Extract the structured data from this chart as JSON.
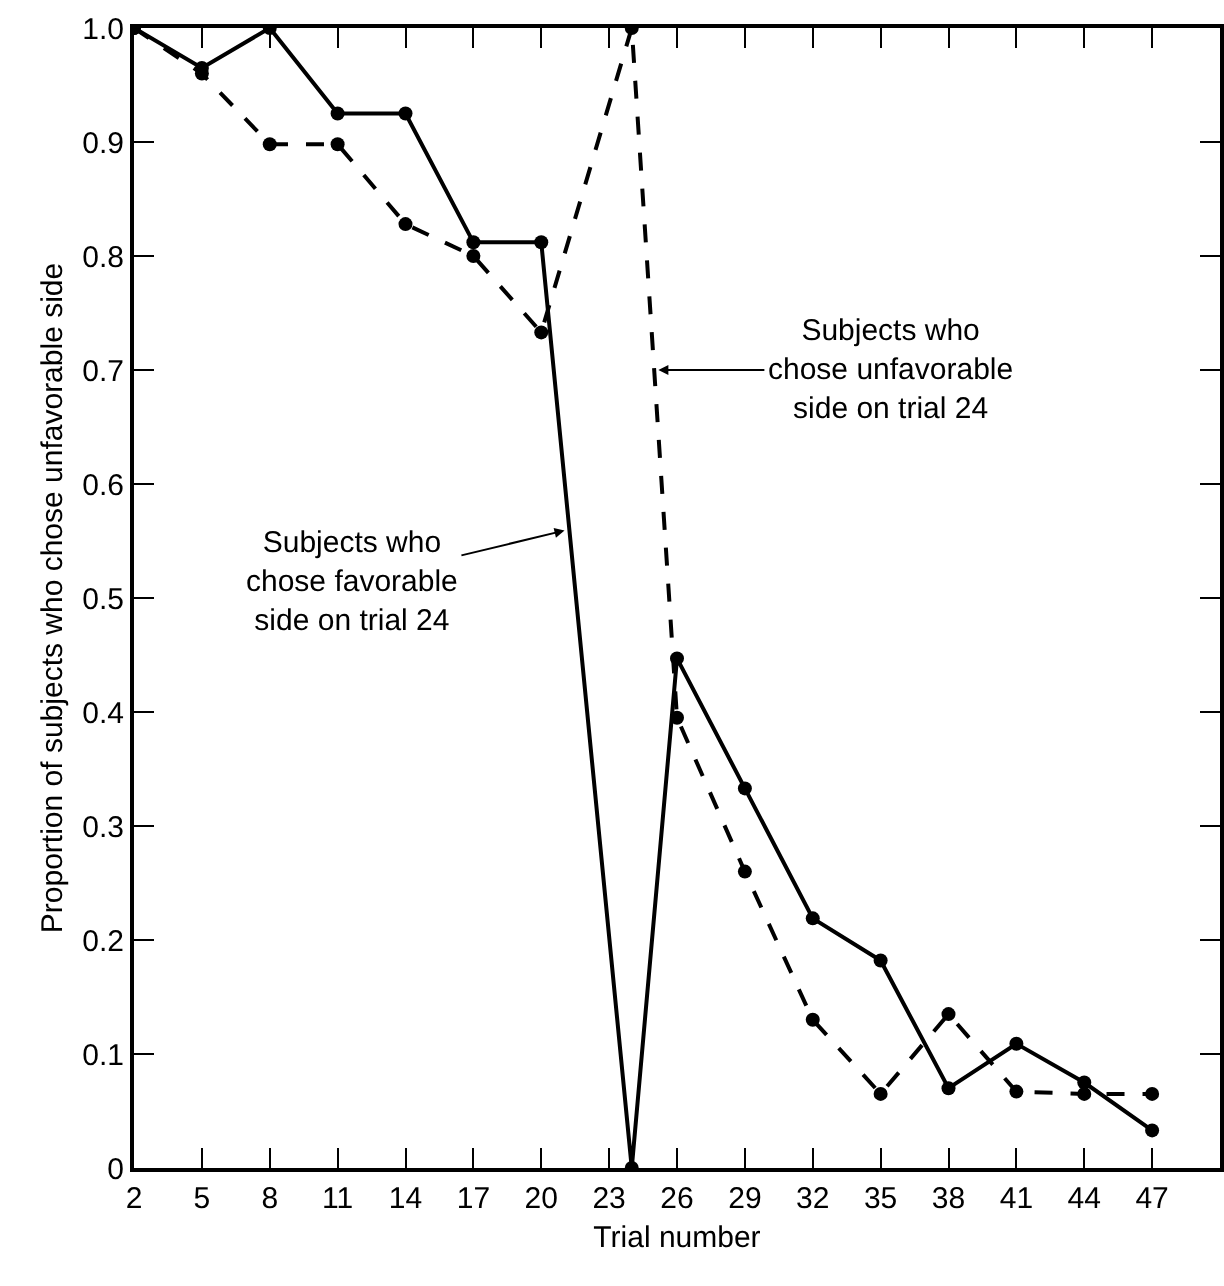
{
  "chart_data": {
    "type": "line",
    "xlabel": "Trial number",
    "ylabel": "Proportion of subjects who chose unfavorable side",
    "series": [
      {
        "color": "#000000",
        "line_style": "solid",
        "x": [
          2,
          5,
          8,
          11,
          14,
          17,
          20,
          24,
          26,
          29,
          32,
          35,
          38,
          41,
          44,
          47
        ],
        "values": [
          1.0,
          0.965,
          1.0,
          0.925,
          0.925,
          0.812,
          0.812,
          0,
          0.447,
          0.333,
          0.219,
          0.182,
          0.07,
          0.109,
          0.075,
          0.033
        ]
      },
      {
        "color": "#000000",
        "line_style": "dashed",
        "x": [
          2,
          5,
          8,
          11,
          14,
          17,
          20,
          24,
          26,
          29,
          32,
          35,
          38,
          41,
          44,
          47
        ],
        "values": [
          1.0,
          0.96,
          0.898,
          0.898,
          0.828,
          0.8,
          0.733,
          1.0,
          0.395,
          0.26,
          0.13,
          0.065,
          0.135,
          0.067,
          0.065,
          0.065
        ]
      }
    ],
    "annotations": [
      {
        "text": "Subjects who\nchose favorable\nside on trial 24",
        "x": 21.2,
        "y": 0.56
      },
      {
        "text": "Subjects who\nchose unfavorable\nside on trial 24",
        "x": 25,
        "y": 0.7
      }
    ],
    "xlim": [
      2,
      50
    ],
    "xticks": [
      2,
      5,
      8,
      11,
      14,
      17,
      20,
      23,
      26,
      29,
      32,
      35,
      38,
      41,
      44,
      47
    ],
    "ylim": [
      0,
      1
    ],
    "yticks": [
      0,
      0.1,
      0.2,
      0.3,
      0.4,
      0.5,
      0.6,
      0.7,
      0.8,
      0.9,
      {
        "value": 1,
        "label": "1.0"
      }
    ],
    "marker": "circle",
    "grid": false
  }
}
